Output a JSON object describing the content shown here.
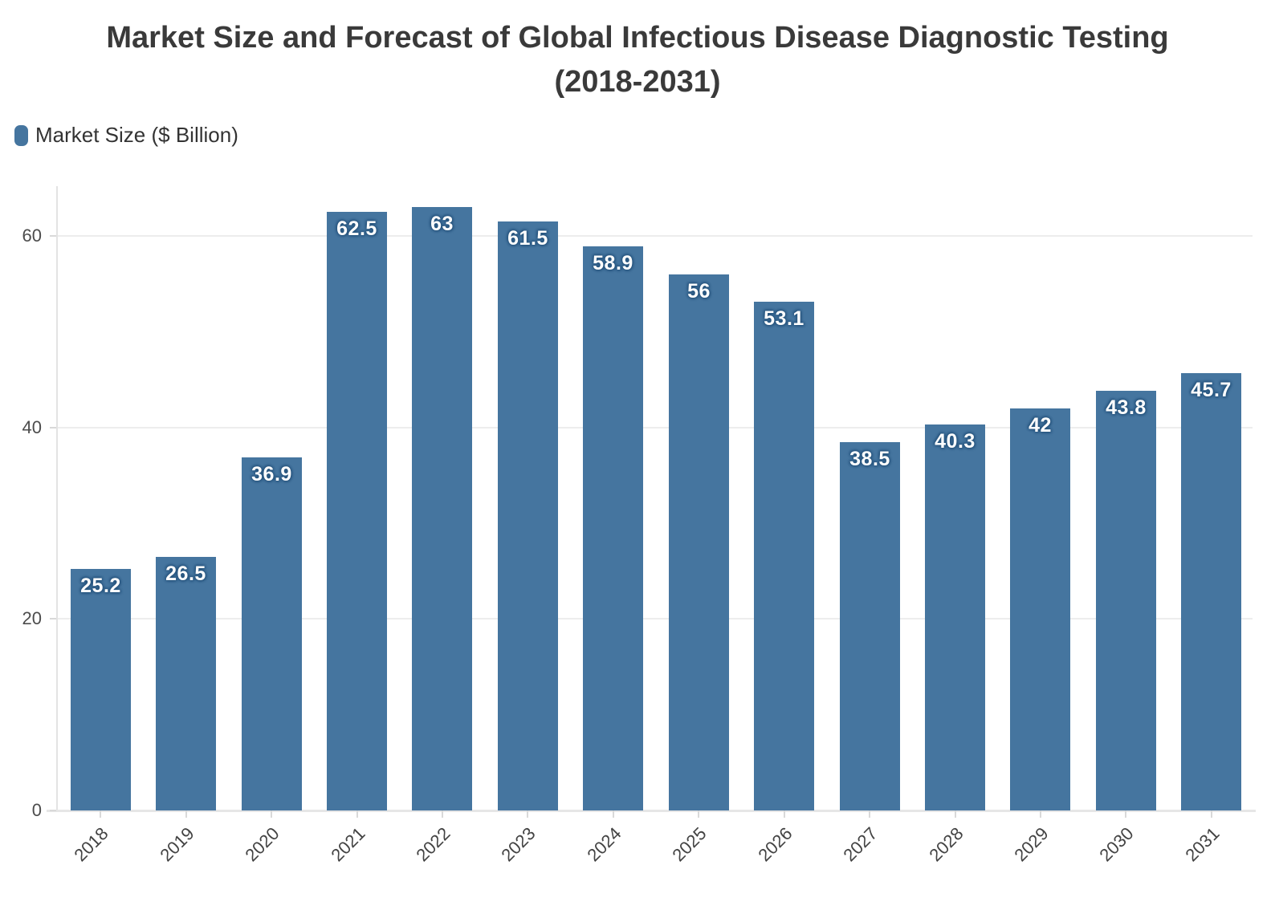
{
  "header": {
    "title_line1": "Market Size and Forecast of Global Infectious Disease Diagnostic Testing",
    "title_line2": "(2018-2031)"
  },
  "legend": {
    "label": "Market Size ($ Billion)",
    "marker_color": "#45759f"
  },
  "chart_data": {
    "type": "bar",
    "title": "Market Size and Forecast of Global Infectious Disease Diagnostic Testing (2018-2031)",
    "legend_entries": [
      "Market Size ($ Billion)"
    ],
    "legend_position": "top-left",
    "categories": [
      "2018",
      "2019",
      "2020",
      "2021",
      "2022",
      "2023",
      "2024",
      "2025",
      "2026",
      "2027",
      "2028",
      "2029",
      "2030",
      "2031"
    ],
    "series": [
      {
        "name": "Market Size ($ Billion)",
        "values": [
          25.2,
          26.5,
          36.9,
          62.5,
          63,
          61.5,
          58.9,
          56,
          53.1,
          38.5,
          40.3,
          42,
          43.8,
          45.7
        ]
      }
    ],
    "value_labels": [
      "25.2",
      "26.5",
      "36.9",
      "62.5",
      "63",
      "61.5",
      "58.9",
      "56",
      "53.1",
      "38.5",
      "40.3",
      "42",
      "43.8",
      "45.7"
    ],
    "xlabel": "",
    "ylabel": "",
    "y_ticks": [
      0,
      20,
      40,
      60
    ],
    "ylim": [
      0,
      65.2
    ],
    "grid": true,
    "bar_color": "#45759f",
    "value_label_color": "#ffffff",
    "value_label_outline": "#27557e"
  }
}
